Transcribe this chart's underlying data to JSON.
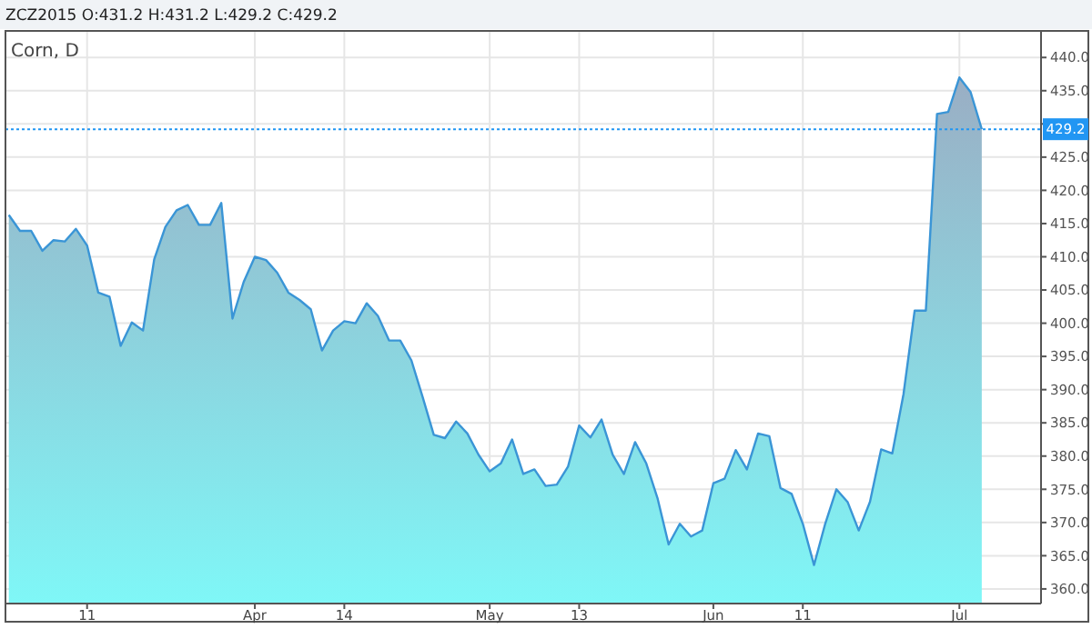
{
  "chart_data": {
    "type": "area",
    "title": "ZCZ2015 O:431.2 H:431.2 L:429.2 C:429.2",
    "subtitle": "Corn, D",
    "categories": [
      null,
      null,
      null,
      null,
      null,
      null,
      null,
      "11",
      null,
      null,
      null,
      null,
      null,
      null,
      null,
      null,
      null,
      null,
      null,
      null,
      null,
      null,
      "Apr",
      null,
      null,
      null,
      null,
      null,
      null,
      null,
      "14",
      null,
      null,
      null,
      null,
      null,
      null,
      null,
      null,
      null,
      null,
      null,
      null,
      "May",
      null,
      null,
      null,
      null,
      null,
      null,
      null,
      "13",
      null,
      null,
      null,
      null,
      null,
      null,
      null,
      null,
      null,
      null,
      null,
      "Jun",
      null,
      null,
      null,
      null,
      null,
      null,
      null,
      "11",
      null,
      null,
      null,
      null,
      null,
      null,
      null,
      null,
      null,
      null,
      null,
      null,
      null,
      "Jul",
      null,
      null
    ],
    "series": [
      {
        "color": "#3a95d6",
        "values": [
          416.3,
          413.9,
          413.9,
          410.9,
          412.5,
          412.3,
          414.2,
          411.7,
          404.6,
          404.0,
          396.6,
          400.1,
          398.9,
          409.6,
          414.5,
          417.0,
          417.8,
          414.8,
          414.8,
          418.1,
          400.7,
          406.2,
          410.0,
          409.5,
          407.6,
          404.6,
          403.5,
          402.1,
          395.9,
          398.9,
          400.3,
          400.0,
          403.0,
          401.1,
          397.4,
          397.4,
          394.4,
          388.9,
          383.2,
          382.7,
          385.2,
          383.4,
          380.2,
          377.7,
          378.9,
          382.5,
          377.3,
          378.0,
          375.5,
          375.7,
          378.4,
          384.6,
          382.8,
          385.5,
          380.2,
          377.3,
          382.1,
          378.9,
          373.7,
          366.7,
          369.8,
          367.9,
          368.8,
          375.9,
          376.6,
          380.9,
          378.0,
          383.4,
          383.0,
          375.2,
          374.3,
          369.8,
          363.6,
          369.8,
          375.0,
          373.1,
          368.8,
          373.1,
          381.0,
          380.4,
          389.3,
          401.9,
          401.9,
          431.5,
          431.8,
          437.0,
          434.8,
          429.2
        ]
      }
    ],
    "ylim": [
      357.8,
      444
    ],
    "yticks": [
      {
        "value": 360,
        "label": "360.0"
      },
      {
        "value": 365,
        "label": "365.0"
      },
      {
        "value": 370,
        "label": "370.0"
      },
      {
        "value": 375,
        "label": "375.0"
      },
      {
        "value": 380,
        "label": "380.0"
      },
      {
        "value": 385,
        "label": "385.0"
      },
      {
        "value": 390,
        "label": "390.0"
      },
      {
        "value": 395,
        "label": "395.0"
      },
      {
        "value": 400,
        "label": "400.0"
      },
      {
        "value": 405,
        "label": "405.0"
      },
      {
        "value": 410,
        "label": "410.0"
      },
      {
        "value": 415,
        "label": "415.0"
      },
      {
        "value": 420,
        "label": "420.0"
      },
      {
        "value": 425,
        "label": "425.0"
      },
      {
        "value": 430,
        "label": null
      },
      {
        "value": 435,
        "label": "435.0"
      },
      {
        "value": 440,
        "label": "440.0"
      }
    ],
    "ref_lines": [
      {
        "axis": "y",
        "value": 429.2,
        "label": "429.2",
        "color": "#2196f3",
        "line_style": "dotted"
      }
    ],
    "grid": true
  }
}
